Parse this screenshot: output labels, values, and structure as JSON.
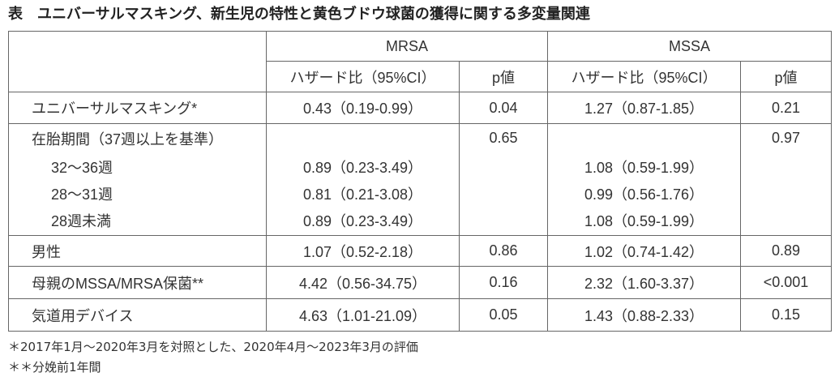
{
  "title": "表　ユニバーサルマスキング、新生児の特性と黄色ブドウ球菌の獲得に関する多変量関連",
  "table": {
    "groups": [
      "MRSA",
      "MSSA"
    ],
    "subheaders": [
      "ハザード比（95%CI）",
      "p値",
      "ハザード比（95%CI）",
      "p値"
    ],
    "rows": [
      {
        "label": "ユニバーサルマスキング*",
        "mrsa_hr": "0.43（0.19-0.99）",
        "mrsa_p": "0.04",
        "mssa_hr": "1.27（0.87-1.85）",
        "mssa_p": "0.21"
      },
      {
        "label": "在胎期間（37週以上を基準）",
        "mrsa_p": "0.65",
        "mssa_p": "0.97",
        "subrows": [
          {
            "label": "32～36週",
            "mrsa_hr": "0.89（0.23-3.49）",
            "mssa_hr": "1.08（0.59-1.99）"
          },
          {
            "label": "28～31週",
            "mrsa_hr": "0.81（0.21-3.08）",
            "mssa_hr": "0.99（0.56-1.76）"
          },
          {
            "label": "28週未満",
            "mrsa_hr": "0.89（0.23-3.49）",
            "mssa_hr": "1.08（0.59-1.99）"
          }
        ]
      },
      {
        "label": "男性",
        "mrsa_hr": "1.07（0.52-2.18）",
        "mrsa_p": "0.86",
        "mssa_hr": "1.02（0.74-1.42）",
        "mssa_p": "0.89"
      },
      {
        "label": "母親のMSSA/MRSA保菌**",
        "mrsa_hr": "4.42（0.56-34.75）",
        "mrsa_p": "0.16",
        "mssa_hr": "2.32（1.60-3.37）",
        "mssa_p": "<0.001"
      },
      {
        "label": "気道用デバイス",
        "mrsa_hr": "4.63（1.01-21.09）",
        "mrsa_p": "0.05",
        "mssa_hr": "1.43（0.88-2.33）",
        "mssa_p": "0.15"
      }
    ]
  },
  "footnotes": [
    "＊2017年1月～2020年3月を対照とした、2020年4月～2023年3月の評価",
    "＊＊分娩前1年間"
  ]
}
